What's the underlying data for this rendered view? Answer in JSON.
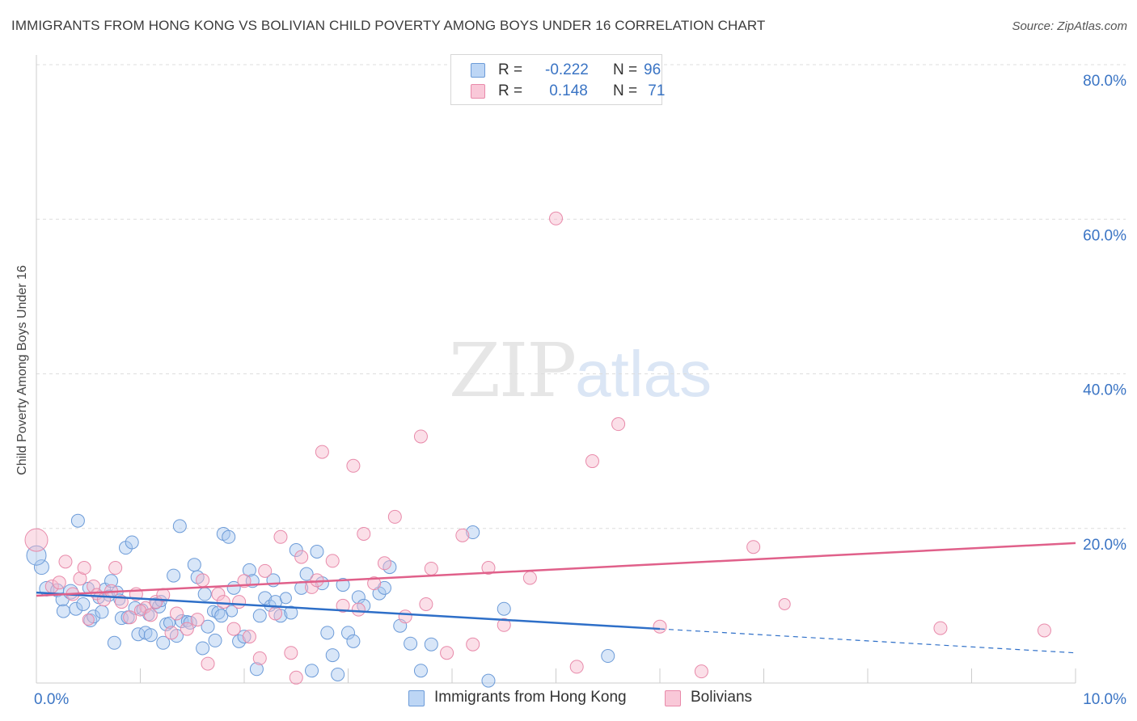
{
  "title": "IMMIGRANTS FROM HONG KONG VS BOLIVIAN CHILD POVERTY AMONG BOYS UNDER 16 CORRELATION CHART",
  "source": "Source: ZipAtlas.com",
  "watermark": {
    "zip": "ZIP",
    "atlas": "atlas"
  },
  "legend": {
    "rows": [
      {
        "r_label": "R =",
        "r_value": "-0.222",
        "n_label": "N =",
        "n_value": "96"
      },
      {
        "r_label": "R =",
        "r_value": " 0.148",
        "n_label": "N =",
        "n_value": " 71"
      }
    ]
  },
  "colors": {
    "blue_fill": "#a8c8f0",
    "blue_stroke": "#6c9bd8",
    "blue_line": "#2e6fc8",
    "pink_fill": "#f6b8cc",
    "pink_stroke": "#e88aaa",
    "pink_line": "#e0608a",
    "tick_label": "#3a74c4",
    "grid": "#dddddd"
  },
  "chart_data": {
    "type": "scatter",
    "title": "IMMIGRANTS FROM HONG KONG VS BOLIVIAN CHILD POVERTY AMONG BOYS UNDER 16 CORRELATION CHART",
    "xlabel": "",
    "ylabel": "Child Poverty Among Boys Under 16",
    "xlim": [
      0,
      10
    ],
    "ylim": [
      0,
      80
    ],
    "x_ticks": [
      "0.0%",
      "10.0%"
    ],
    "y_ticks": [
      {
        "value": 20,
        "label": "20.0%"
      },
      {
        "value": 40,
        "label": "40.0%"
      },
      {
        "value": 60,
        "label": "60.0%"
      },
      {
        "value": 80,
        "label": "80.0%"
      }
    ],
    "grid": true,
    "legend_position": "top-center",
    "series": [
      {
        "name": "Immigrants from Hong Kong",
        "color": "blue",
        "trend": {
          "x0": 0,
          "y0": 11.7,
          "x1": 6.0,
          "y1": 7.0,
          "dash_to_x": 10,
          "dash_to_y": 3.9
        },
        "points": [
          [
            0.05,
            15.0,
            9
          ],
          [
            0.1,
            12.2,
            9
          ],
          [
            0.2,
            12.0,
            8
          ],
          [
            0.25,
            10.8,
            8
          ],
          [
            0.26,
            9.3,
            8
          ],
          [
            0.33,
            11.8,
            9
          ],
          [
            0.38,
            9.6,
            8
          ],
          [
            0.4,
            21.0,
            8
          ],
          [
            0.45,
            10.2,
            8
          ],
          [
            0.5,
            12.3,
            7
          ],
          [
            0.52,
            8.1,
            8
          ],
          [
            0.55,
            8.6,
            8
          ],
          [
            0.6,
            11.0,
            7
          ],
          [
            0.63,
            9.2,
            8
          ],
          [
            0.66,
            12.2,
            7
          ],
          [
            0.7,
            11.3,
            7
          ],
          [
            0.72,
            13.2,
            8
          ],
          [
            0.75,
            5.2,
            8
          ],
          [
            0.78,
            11.8,
            7
          ],
          [
            0.8,
            10.8,
            7
          ],
          [
            0.82,
            8.4,
            8
          ],
          [
            0.86,
            17.5,
            8
          ],
          [
            0.88,
            8.5,
            8
          ],
          [
            0.92,
            18.2,
            8
          ],
          [
            0.95,
            9.7,
            8
          ],
          [
            0.98,
            6.3,
            8
          ],
          [
            1.02,
            9.5,
            7
          ],
          [
            1.05,
            6.5,
            8
          ],
          [
            1.08,
            8.8,
            7
          ],
          [
            1.1,
            6.2,
            8
          ],
          [
            1.15,
            10.3,
            7
          ],
          [
            1.18,
            9.9,
            8
          ],
          [
            1.2,
            10.6,
            7
          ],
          [
            1.22,
            5.2,
            8
          ],
          [
            1.25,
            7.6,
            8
          ],
          [
            1.28,
            7.8,
            7
          ],
          [
            1.32,
            13.9,
            8
          ],
          [
            1.35,
            6.1,
            8
          ],
          [
            1.38,
            20.3,
            8
          ],
          [
            1.4,
            8.0,
            8
          ],
          [
            1.45,
            8.0,
            7
          ],
          [
            1.48,
            7.8,
            8
          ],
          [
            1.52,
            15.3,
            8
          ],
          [
            1.55,
            13.7,
            8
          ],
          [
            1.6,
            4.5,
            8
          ],
          [
            1.62,
            11.5,
            8
          ],
          [
            1.65,
            7.3,
            8
          ],
          [
            1.7,
            9.3,
            7
          ],
          [
            1.72,
            5.5,
            8
          ],
          [
            1.75,
            9.1,
            8
          ],
          [
            1.78,
            8.7,
            8
          ],
          [
            1.8,
            19.3,
            8
          ],
          [
            1.85,
            18.9,
            8
          ],
          [
            1.88,
            9.3,
            7
          ],
          [
            1.9,
            12.3,
            8
          ],
          [
            1.95,
            5.4,
            8
          ],
          [
            2.0,
            6.0,
            8
          ],
          [
            2.05,
            14.6,
            8
          ],
          [
            2.08,
            13.2,
            8
          ],
          [
            2.12,
            1.8,
            8
          ],
          [
            2.15,
            8.7,
            8
          ],
          [
            2.2,
            11.0,
            8
          ],
          [
            2.25,
            10.0,
            7
          ],
          [
            2.28,
            13.3,
            8
          ],
          [
            2.3,
            10.5,
            8
          ],
          [
            2.35,
            8.7,
            8
          ],
          [
            2.4,
            11.0,
            7
          ],
          [
            2.45,
            9.1,
            8
          ],
          [
            2.5,
            17.2,
            8
          ],
          [
            2.55,
            12.3,
            8
          ],
          [
            2.6,
            14.1,
            8
          ],
          [
            2.65,
            1.6,
            8
          ],
          [
            2.7,
            17.0,
            8
          ],
          [
            2.75,
            12.9,
            8
          ],
          [
            2.8,
            6.5,
            8
          ],
          [
            2.85,
            3.6,
            8
          ],
          [
            2.9,
            1.1,
            8
          ],
          [
            2.95,
            12.7,
            8
          ],
          [
            3.0,
            6.5,
            8
          ],
          [
            3.05,
            5.4,
            8
          ],
          [
            3.1,
            11.1,
            8
          ],
          [
            3.15,
            10.0,
            8
          ],
          [
            3.3,
            11.6,
            8
          ],
          [
            3.35,
            12.3,
            8
          ],
          [
            3.4,
            15.0,
            8
          ],
          [
            3.5,
            7.4,
            8
          ],
          [
            3.6,
            5.1,
            8
          ],
          [
            3.7,
            1.6,
            8
          ],
          [
            3.8,
            5.0,
            8
          ],
          [
            4.2,
            19.5,
            8
          ],
          [
            4.35,
            0.3,
            8
          ],
          [
            4.5,
            9.6,
            8
          ],
          [
            5.5,
            3.5,
            8
          ],
          [
            0.0,
            16.5,
            12
          ]
        ]
      },
      {
        "name": "Bolivians",
        "color": "pink",
        "trend": {
          "x0": 0,
          "y0": 11.3,
          "x1": 10,
          "y1": 18.1
        },
        "points": [
          [
            0.0,
            18.5,
            14
          ],
          [
            0.15,
            12.5,
            8
          ],
          [
            0.22,
            13.0,
            8
          ],
          [
            0.28,
            15.7,
            8
          ],
          [
            0.35,
            11.5,
            8
          ],
          [
            0.42,
            13.5,
            8
          ],
          [
            0.46,
            14.9,
            8
          ],
          [
            0.55,
            12.5,
            8
          ],
          [
            0.58,
            11.5,
            7
          ],
          [
            0.65,
            10.8,
            8
          ],
          [
            0.72,
            11.9,
            8
          ],
          [
            0.76,
            14.9,
            8
          ],
          [
            0.82,
            10.5,
            8
          ],
          [
            0.9,
            8.5,
            8
          ],
          [
            0.96,
            11.5,
            8
          ],
          [
            1.05,
            9.8,
            7
          ],
          [
            1.1,
            8.8,
            8
          ],
          [
            1.15,
            10.5,
            8
          ],
          [
            1.22,
            11.4,
            8
          ],
          [
            1.3,
            6.5,
            8
          ],
          [
            1.35,
            9.0,
            8
          ],
          [
            1.45,
            7.0,
            8
          ],
          [
            1.55,
            8.2,
            8
          ],
          [
            1.6,
            13.3,
            8
          ],
          [
            1.65,
            2.5,
            8
          ],
          [
            1.75,
            11.5,
            8
          ],
          [
            1.8,
            10.5,
            8
          ],
          [
            1.9,
            7.0,
            8
          ],
          [
            1.95,
            10.5,
            8
          ],
          [
            2.0,
            13.2,
            8
          ],
          [
            2.05,
            6.0,
            8
          ],
          [
            2.15,
            3.2,
            8
          ],
          [
            2.2,
            14.5,
            8
          ],
          [
            2.3,
            9.0,
            8
          ],
          [
            2.35,
            18.9,
            8
          ],
          [
            2.45,
            3.9,
            8
          ],
          [
            2.5,
            0.7,
            8
          ],
          [
            2.55,
            16.3,
            8
          ],
          [
            2.65,
            12.4,
            8
          ],
          [
            2.7,
            13.3,
            8
          ],
          [
            2.75,
            29.9,
            8
          ],
          [
            2.85,
            15.8,
            8
          ],
          [
            2.95,
            10.0,
            8
          ],
          [
            3.05,
            28.1,
            8
          ],
          [
            3.1,
            9.5,
            8
          ],
          [
            3.15,
            19.3,
            8
          ],
          [
            3.25,
            12.9,
            8
          ],
          [
            3.35,
            15.5,
            8
          ],
          [
            3.45,
            21.5,
            8
          ],
          [
            3.55,
            8.6,
            8
          ],
          [
            3.7,
            31.9,
            8
          ],
          [
            3.75,
            10.2,
            8
          ],
          [
            3.8,
            14.8,
            8
          ],
          [
            3.95,
            3.9,
            8
          ],
          [
            4.1,
            19.1,
            8
          ],
          [
            4.2,
            5.0,
            8
          ],
          [
            4.35,
            14.9,
            8
          ],
          [
            4.5,
            7.5,
            8
          ],
          [
            4.75,
            13.6,
            8
          ],
          [
            5.0,
            60.1,
            8
          ],
          [
            5.2,
            2.1,
            8
          ],
          [
            5.35,
            28.7,
            8
          ],
          [
            5.6,
            33.5,
            8
          ],
          [
            6.0,
            7.3,
            8
          ],
          [
            6.4,
            1.5,
            8
          ],
          [
            6.9,
            17.6,
            8
          ],
          [
            7.2,
            10.2,
            7
          ],
          [
            8.7,
            7.1,
            8
          ],
          [
            9.7,
            6.8,
            8
          ],
          [
            1.0,
            9.4,
            7
          ],
          [
            0.5,
            8.2,
            7
          ]
        ]
      }
    ]
  },
  "bottom_legend": [
    {
      "name": "Immigrants from Hong Kong"
    },
    {
      "name": "Bolivians"
    }
  ]
}
